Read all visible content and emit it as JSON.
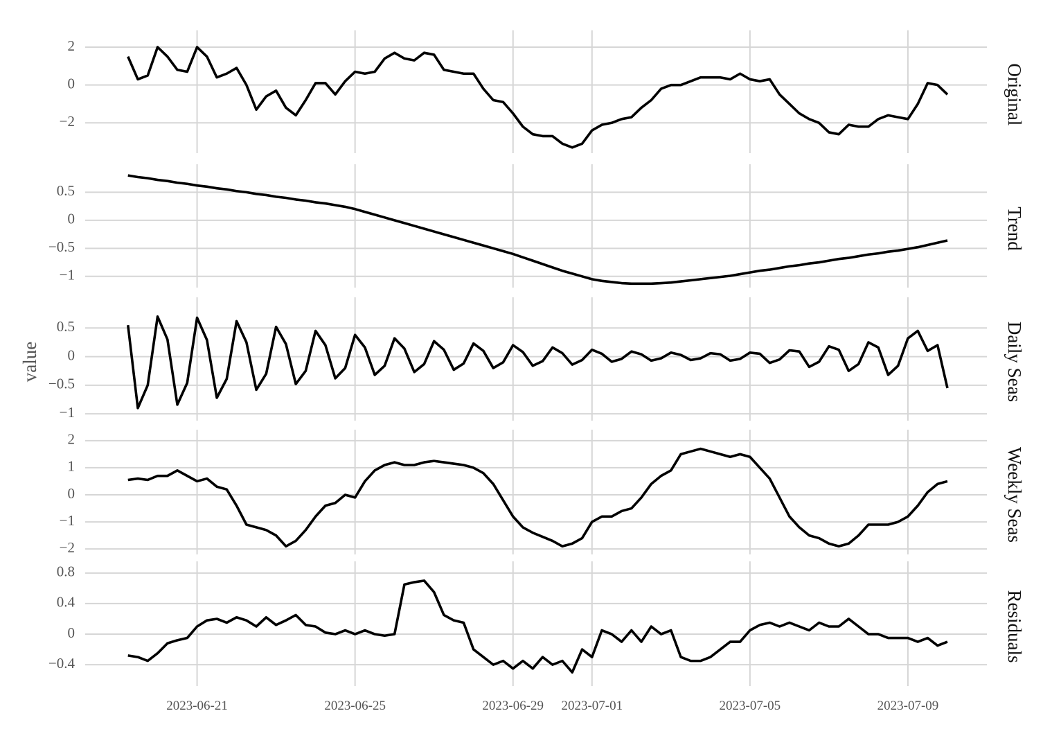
{
  "chart_data": {
    "type": "line",
    "ylabel": "value",
    "color": "#000000",
    "grid": true,
    "xlim": [
      "2023-06-18T04:00",
      "2023-07-11T00:00"
    ],
    "xticks": [
      "2023-06-21",
      "2023-06-25",
      "2023-06-29",
      "2023-07-01",
      "2023-07-05",
      "2023-07-09"
    ],
    "x": [
      "2023-06-19T06:00",
      "2023-06-19T12:00",
      "2023-06-19T18:00",
      "2023-06-20T00:00",
      "2023-06-20T06:00",
      "2023-06-20T12:00",
      "2023-06-20T18:00",
      "2023-06-21T00:00",
      "2023-06-21T06:00",
      "2023-06-21T12:00",
      "2023-06-21T18:00",
      "2023-06-22T00:00",
      "2023-06-22T06:00",
      "2023-06-22T12:00",
      "2023-06-22T18:00",
      "2023-06-23T00:00",
      "2023-06-23T06:00",
      "2023-06-23T12:00",
      "2023-06-23T18:00",
      "2023-06-24T00:00",
      "2023-06-24T06:00",
      "2023-06-24T12:00",
      "2023-06-24T18:00",
      "2023-06-25T00:00",
      "2023-06-25T06:00",
      "2023-06-25T12:00",
      "2023-06-25T18:00",
      "2023-06-26T00:00",
      "2023-06-26T06:00",
      "2023-06-26T12:00",
      "2023-06-26T18:00",
      "2023-06-27T00:00",
      "2023-06-27T06:00",
      "2023-06-27T12:00",
      "2023-06-27T18:00",
      "2023-06-28T00:00",
      "2023-06-28T06:00",
      "2023-06-28T12:00",
      "2023-06-28T18:00",
      "2023-06-29T00:00",
      "2023-06-29T06:00",
      "2023-06-29T12:00",
      "2023-06-29T18:00",
      "2023-06-30T00:00",
      "2023-06-30T06:00",
      "2023-06-30T12:00",
      "2023-06-30T18:00",
      "2023-07-01T00:00",
      "2023-07-01T06:00",
      "2023-07-01T12:00",
      "2023-07-01T18:00",
      "2023-07-02T00:00",
      "2023-07-02T06:00",
      "2023-07-02T12:00",
      "2023-07-02T18:00",
      "2023-07-03T00:00",
      "2023-07-03T06:00",
      "2023-07-03T12:00",
      "2023-07-03T18:00",
      "2023-07-04T00:00",
      "2023-07-04T06:00",
      "2023-07-04T12:00",
      "2023-07-04T18:00",
      "2023-07-05T00:00",
      "2023-07-05T06:00",
      "2023-07-05T12:00",
      "2023-07-05T18:00",
      "2023-07-06T00:00",
      "2023-07-06T06:00",
      "2023-07-06T12:00",
      "2023-07-06T18:00",
      "2023-07-07T00:00",
      "2023-07-07T06:00",
      "2023-07-07T12:00",
      "2023-07-07T18:00",
      "2023-07-08T00:00",
      "2023-07-08T06:00",
      "2023-07-08T12:00",
      "2023-07-08T18:00",
      "2023-07-09T00:00",
      "2023-07-09T06:00",
      "2023-07-09T12:00",
      "2023-07-09T18:00",
      "2023-07-10T00:00"
    ],
    "panels": [
      {
        "name": "Original",
        "ylim": [
          -3.6,
          2.6
        ],
        "yticks": [
          {
            "value": -2,
            "label": "−2"
          },
          0,
          2
        ],
        "values": [
          1.5,
          0.3,
          0.5,
          2.0,
          1.5,
          0.8,
          0.7,
          2.0,
          1.5,
          0.4,
          0.6,
          0.9,
          0,
          -1.3,
          -0.6,
          -0.3,
          -1.2,
          -1.6,
          -0.8,
          0.1,
          0.1,
          -0.5,
          0.2,
          0.7,
          0.6,
          0.7,
          1.4,
          1.7,
          1.4,
          1.3,
          1.7,
          1.6,
          0.8,
          0.7,
          0.6,
          0.6,
          -0.2,
          -0.8,
          -0.9,
          -1.5,
          -2.2,
          -2.6,
          -2.7,
          -2.7,
          -3.1,
          -3.3,
          -3.1,
          -2.4,
          -2.1,
          -2.0,
          -1.8,
          -1.7,
          -1.2,
          -0.8,
          -0.2,
          0,
          0,
          0.2,
          0.4,
          0.4,
          0.4,
          0.3,
          0.6,
          0.3,
          0.2,
          0.3,
          -0.5,
          -1.0,
          -1.5,
          -1.8,
          -2.0,
          -2.5,
          -2.6,
          -2.1,
          -2.2,
          -2.2,
          -1.8,
          -1.6,
          -1.7,
          -1.8,
          -1.0,
          0.1,
          0,
          -0.5
        ]
      },
      {
        "name": "Trend",
        "ylim": [
          -1.2,
          0.9
        ],
        "yticks": [
          {
            "value": -1,
            "label": "−1"
          },
          {
            "value": -0.5,
            "label": "−0.5"
          },
          0,
          0.5
        ],
        "values": [
          0.8,
          0.77,
          0.75,
          0.72,
          0.7,
          0.67,
          0.65,
          0.62,
          0.6,
          0.57,
          0.55,
          0.52,
          0.5,
          0.47,
          0.45,
          0.42,
          0.4,
          0.37,
          0.35,
          0.32,
          0.3,
          0.27,
          0.24,
          0.2,
          0.15,
          0.1,
          0.05,
          0,
          -0.05,
          -0.1,
          -0.15,
          -0.2,
          -0.25,
          -0.3,
          -0.35,
          -0.4,
          -0.45,
          -0.5,
          -0.55,
          -0.6,
          -0.66,
          -0.72,
          -0.78,
          -0.84,
          -0.9,
          -0.95,
          -1.0,
          -1.05,
          -1.08,
          -1.1,
          -1.12,
          -1.13,
          -1.13,
          -1.13,
          -1.12,
          -1.11,
          -1.09,
          -1.07,
          -1.05,
          -1.03,
          -1.01,
          -0.99,
          -0.96,
          -0.93,
          -0.9,
          -0.88,
          -0.85,
          -0.82,
          -0.8,
          -0.77,
          -0.75,
          -0.72,
          -0.69,
          -0.67,
          -0.64,
          -0.61,
          -0.59,
          -0.56,
          -0.54,
          -0.51,
          -0.48,
          -0.44,
          -0.4,
          -0.36
        ]
      },
      {
        "name": "Daily Seas",
        "ylim": [
          -1.12,
          0.94
        ],
        "yticks": [
          {
            "value": -1,
            "label": "−1"
          },
          {
            "value": -0.5,
            "label": "−0.5"
          },
          0,
          0.5
        ],
        "values": [
          0.55,
          -0.9,
          -0.5,
          0.7,
          0.3,
          -0.84,
          -0.46,
          0.68,
          0.29,
          -0.72,
          -0.39,
          0.62,
          0.25,
          -0.58,
          -0.3,
          0.52,
          0.22,
          -0.48,
          -0.25,
          0.45,
          0.2,
          -0.38,
          -0.2,
          0.38,
          0.16,
          -0.32,
          -0.16,
          0.32,
          0.14,
          -0.27,
          -0.13,
          0.27,
          0.12,
          -0.23,
          -0.12,
          0.23,
          0.1,
          -0.2,
          -0.1,
          0.2,
          0.08,
          -0.16,
          -0.08,
          0.16,
          0.06,
          -0.14,
          -0.06,
          0.12,
          0.05,
          -0.09,
          -0.04,
          0.09,
          0.04,
          -0.07,
          -0.03,
          0.07,
          0.03,
          -0.06,
          -0.03,
          0.06,
          0.04,
          -0.07,
          -0.04,
          0.07,
          0.05,
          -0.11,
          -0.05,
          0.11,
          0.09,
          -0.18,
          -0.09,
          0.18,
          0.12,
          -0.25,
          -0.13,
          0.25,
          0.16,
          -0.32,
          -0.16,
          0.32,
          0.45,
          0.1,
          0.2,
          -0.55
        ]
      },
      {
        "name": "Weekly Seas",
        "ylim": [
          -2.2,
          2.2
        ],
        "yticks": [
          {
            "value": -2,
            "label": "−2"
          },
          {
            "value": -1,
            "label": "−1"
          },
          0,
          1,
          2
        ],
        "values": [
          0.55,
          0.6,
          0.55,
          0.7,
          0.7,
          0.9,
          0.7,
          0.5,
          0.6,
          0.3,
          0.2,
          -0.4,
          -1.1,
          -1.2,
          -1.3,
          -1.5,
          -1.9,
          -1.7,
          -1.3,
          -0.8,
          -0.4,
          -0.3,
          0,
          -0.1,
          0.5,
          0.9,
          1.1,
          1.2,
          1.1,
          1.1,
          1.2,
          1.25,
          1.2,
          1.15,
          1.1,
          1.0,
          0.8,
          0.4,
          -0.2,
          -0.8,
          -1.2,
          -1.4,
          -1.55,
          -1.7,
          -1.9,
          -1.8,
          -1.6,
          -1.0,
          -0.8,
          -0.8,
          -0.6,
          -0.5,
          -0.1,
          0.4,
          0.7,
          0.9,
          1.5,
          1.6,
          1.7,
          1.6,
          1.5,
          1.4,
          1.5,
          1.4,
          1.0,
          0.6,
          -0.1,
          -0.8,
          -1.2,
          -1.5,
          -1.6,
          -1.8,
          -1.9,
          -1.8,
          -1.5,
          -1.1,
          -1.1,
          -1.1,
          -1.0,
          -0.8,
          -0.4,
          0.1,
          0.4,
          0.5
        ]
      },
      {
        "name": "Residuals",
        "ylim": [
          -0.68,
          0.88
        ],
        "yticks": [
          {
            "value": -0.4,
            "label": "−0.4"
          },
          0,
          0.4,
          0.8
        ],
        "values": [
          -0.28,
          -0.3,
          -0.35,
          -0.25,
          -0.12,
          -0.08,
          -0.05,
          0.1,
          0.18,
          0.2,
          0.15,
          0.22,
          0.18,
          0.1,
          0.22,
          0.12,
          0.18,
          0.25,
          0.12,
          0.1,
          0.02,
          0,
          0.05,
          0,
          0.05,
          0,
          -0.02,
          0,
          0.65,
          0.68,
          0.7,
          0.55,
          0.25,
          0.18,
          0.15,
          -0.2,
          -0.3,
          -0.4,
          -0.35,
          -0.45,
          -0.35,
          -0.45,
          -0.3,
          -0.4,
          -0.35,
          -0.5,
          -0.2,
          -0.3,
          0.05,
          0,
          -0.1,
          0.05,
          -0.1,
          0.1,
          0,
          0.05,
          -0.3,
          -0.35,
          -0.35,
          -0.3,
          -0.2,
          -0.1,
          -0.1,
          0.05,
          0.12,
          0.15,
          0.1,
          0.15,
          0.1,
          0.05,
          0.15,
          0.1,
          0.1,
          0.2,
          0.1,
          0,
          0,
          -0.05,
          -0.05,
          -0.05,
          -0.1,
          -0.05,
          -0.15,
          -0.1
        ]
      }
    ]
  }
}
